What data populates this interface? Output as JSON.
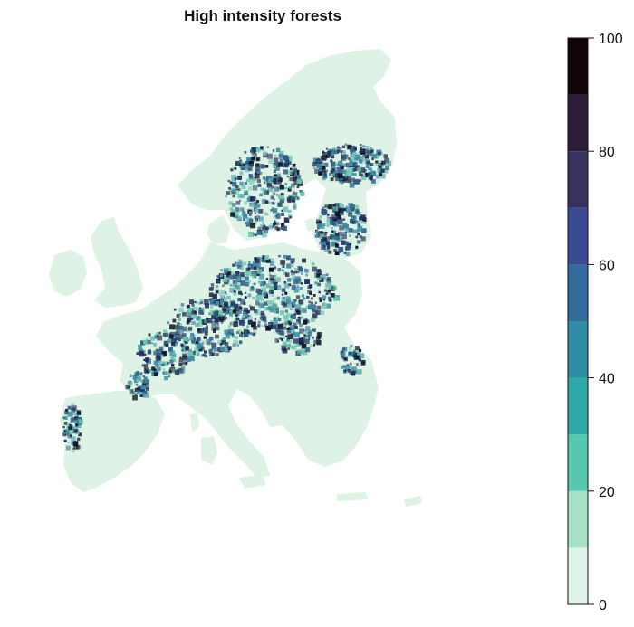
{
  "title": "High intensity forests",
  "legend": {
    "range": [
      0,
      100
    ],
    "tick_values": [
      0,
      20,
      40,
      60,
      80,
      100
    ],
    "tick_labels": [
      "0",
      "20",
      "40",
      "60",
      "80",
      "100"
    ],
    "classes": [
      {
        "from": 0,
        "to": 10,
        "color": "#e0f5ea"
      },
      {
        "from": 10,
        "to": 20,
        "color": "#a7e0c4"
      },
      {
        "from": 20,
        "to": 30,
        "color": "#55c8ae"
      },
      {
        "from": 30,
        "to": 40,
        "color": "#2fa8a8"
      },
      {
        "from": 40,
        "to": 50,
        "color": "#2f8ca4"
      },
      {
        "from": 50,
        "to": 60,
        "color": "#336b9c"
      },
      {
        "from": 60,
        "to": 70,
        "color": "#3b4b93"
      },
      {
        "from": 70,
        "to": 80,
        "color": "#37325f"
      },
      {
        "from": 80,
        "to": 90,
        "color": "#2b1d38"
      },
      {
        "from": 90,
        "to": 100,
        "color": "#120508"
      }
    ]
  },
  "map": {
    "land_color": "#def3e6",
    "hotspot_colors": [
      "#1e2a56",
      "#2c5c88",
      "#3a8ea6",
      "#6fc7b0",
      "#0f1426"
    ]
  }
}
